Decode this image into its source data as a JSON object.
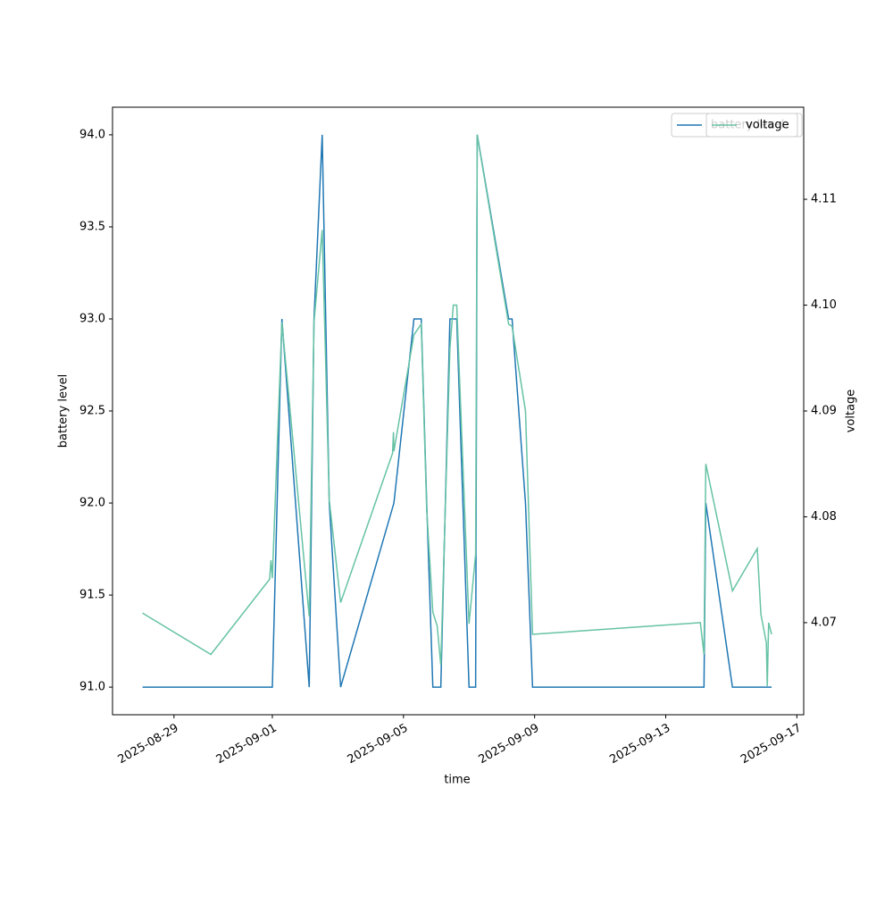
{
  "chart_data": {
    "type": "line",
    "xlabel": "time",
    "ylabel": "battery level",
    "y2label": "voltage",
    "xlim": [
      "2025-08-27 03:00",
      "2025-09-17 05:00"
    ],
    "xticks": [
      "2025-08-29",
      "2025-09-01",
      "2025-09-05",
      "2025-09-09",
      "2025-09-13",
      "2025-09-17"
    ],
    "ylim": [
      90.85,
      94.15
    ],
    "yticks": [
      {
        "value": 91,
        "label": "91.0"
      },
      91.5,
      {
        "value": 92,
        "label": "92.0"
      },
      92.5,
      {
        "value": 93,
        "label": "93.0"
      },
      93.5,
      {
        "value": 94,
        "label": "94.0"
      }
    ],
    "y2lim": [
      4.0613,
      4.1187
    ],
    "y2ticks": [
      4.07,
      4.08,
      4.09,
      {
        "value": 4.1,
        "label": "4.10"
      },
      4.11
    ],
    "legend": "upper right",
    "series": [
      {
        "name": "battery level",
        "color": "#1f77b4",
        "x": [
          "2025-08-28 01:00",
          "2025-09-01 00:00",
          "2025-09-01 07:00",
          "2025-09-02 03:00",
          "2025-09-02 06:30",
          "2025-09-02 12:30",
          "2025-09-02 17:40",
          "2025-09-03 02:00",
          "2025-09-04 17:00",
          "2025-09-05 07:40",
          "2025-09-05 13:00",
          "2025-09-05 17:00",
          "2025-09-05 21:30",
          "2025-09-06 03:20",
          "2025-09-06 10:00",
          "2025-09-06 15:00",
          "2025-09-07 00:00",
          "2025-09-07 04:50",
          "2025-09-07 06:00",
          "2025-09-08 05:00",
          "2025-09-08 07:30",
          "2025-09-08 17:20",
          "2025-09-08 22:30",
          "2025-09-14 04:00",
          "2025-09-14 05:20",
          "2025-09-15 00:50",
          "2025-09-16 05:30"
        ],
        "values": [
          91,
          91,
          93,
          91,
          93,
          94,
          92,
          91,
          92,
          93,
          93,
          92,
          91,
          91,
          93,
          93,
          91,
          91,
          94,
          93,
          93,
          92,
          91,
          91,
          92,
          91,
          91
        ]
      },
      {
        "name": "voltage",
        "color": "#66c2a5",
        "axis": "y2",
        "x": [
          "2025-08-28 01:00",
          "2025-08-30 03:00",
          "2025-08-31 22:00",
          "2025-08-31 23:00",
          "2025-09-01 00:00",
          "2025-09-01 07:00",
          "2025-09-02 03:00",
          "2025-09-02 06:30",
          "2025-09-02 12:30",
          "2025-09-02 17:40",
          "2025-09-03 02:00",
          "2025-09-04 16:00",
          "2025-09-04 16:40",
          "2025-09-04 17:00",
          "2025-09-05 07:40",
          "2025-09-05 13:00",
          "2025-09-05 17:00",
          "2025-09-05 21:30",
          "2025-09-06 00:40",
          "2025-09-06 03:20",
          "2025-09-06 10:00",
          "2025-09-06 12:30",
          "2025-09-06 15:00",
          "2025-09-07 00:00",
          "2025-09-07 04:50",
          "2025-09-07 06:00",
          "2025-09-08 05:00",
          "2025-09-08 07:30",
          "2025-09-08 17:20",
          "2025-09-08 22:30",
          "2025-09-14 01:20",
          "2025-09-14 04:00",
          "2025-09-14 05:20",
          "2025-09-15 00:50",
          "2025-09-15 19:00",
          "2025-09-15 21:40",
          "2025-09-16 01:40",
          "2025-09-16 02:20",
          "2025-09-16 03:20",
          "2025-09-16 05:30"
        ],
        "values": [
          4.0709,
          4.067,
          4.0741,
          4.0759,
          4.0742,
          4.0984,
          4.0706,
          4.0984,
          4.1071,
          4.0816,
          4.0719,
          4.086,
          4.088,
          4.0862,
          4.0972,
          4.0982,
          4.0807,
          4.071,
          4.0697,
          4.066,
          4.0959,
          4.1,
          4.1,
          4.0699,
          4.0765,
          4.1161,
          4.0982,
          4.098,
          4.09,
          4.0689,
          4.07,
          4.067,
          4.085,
          4.073,
          4.077,
          4.0708,
          4.0681,
          4.064,
          4.07,
          4.0689
        ]
      }
    ]
  }
}
